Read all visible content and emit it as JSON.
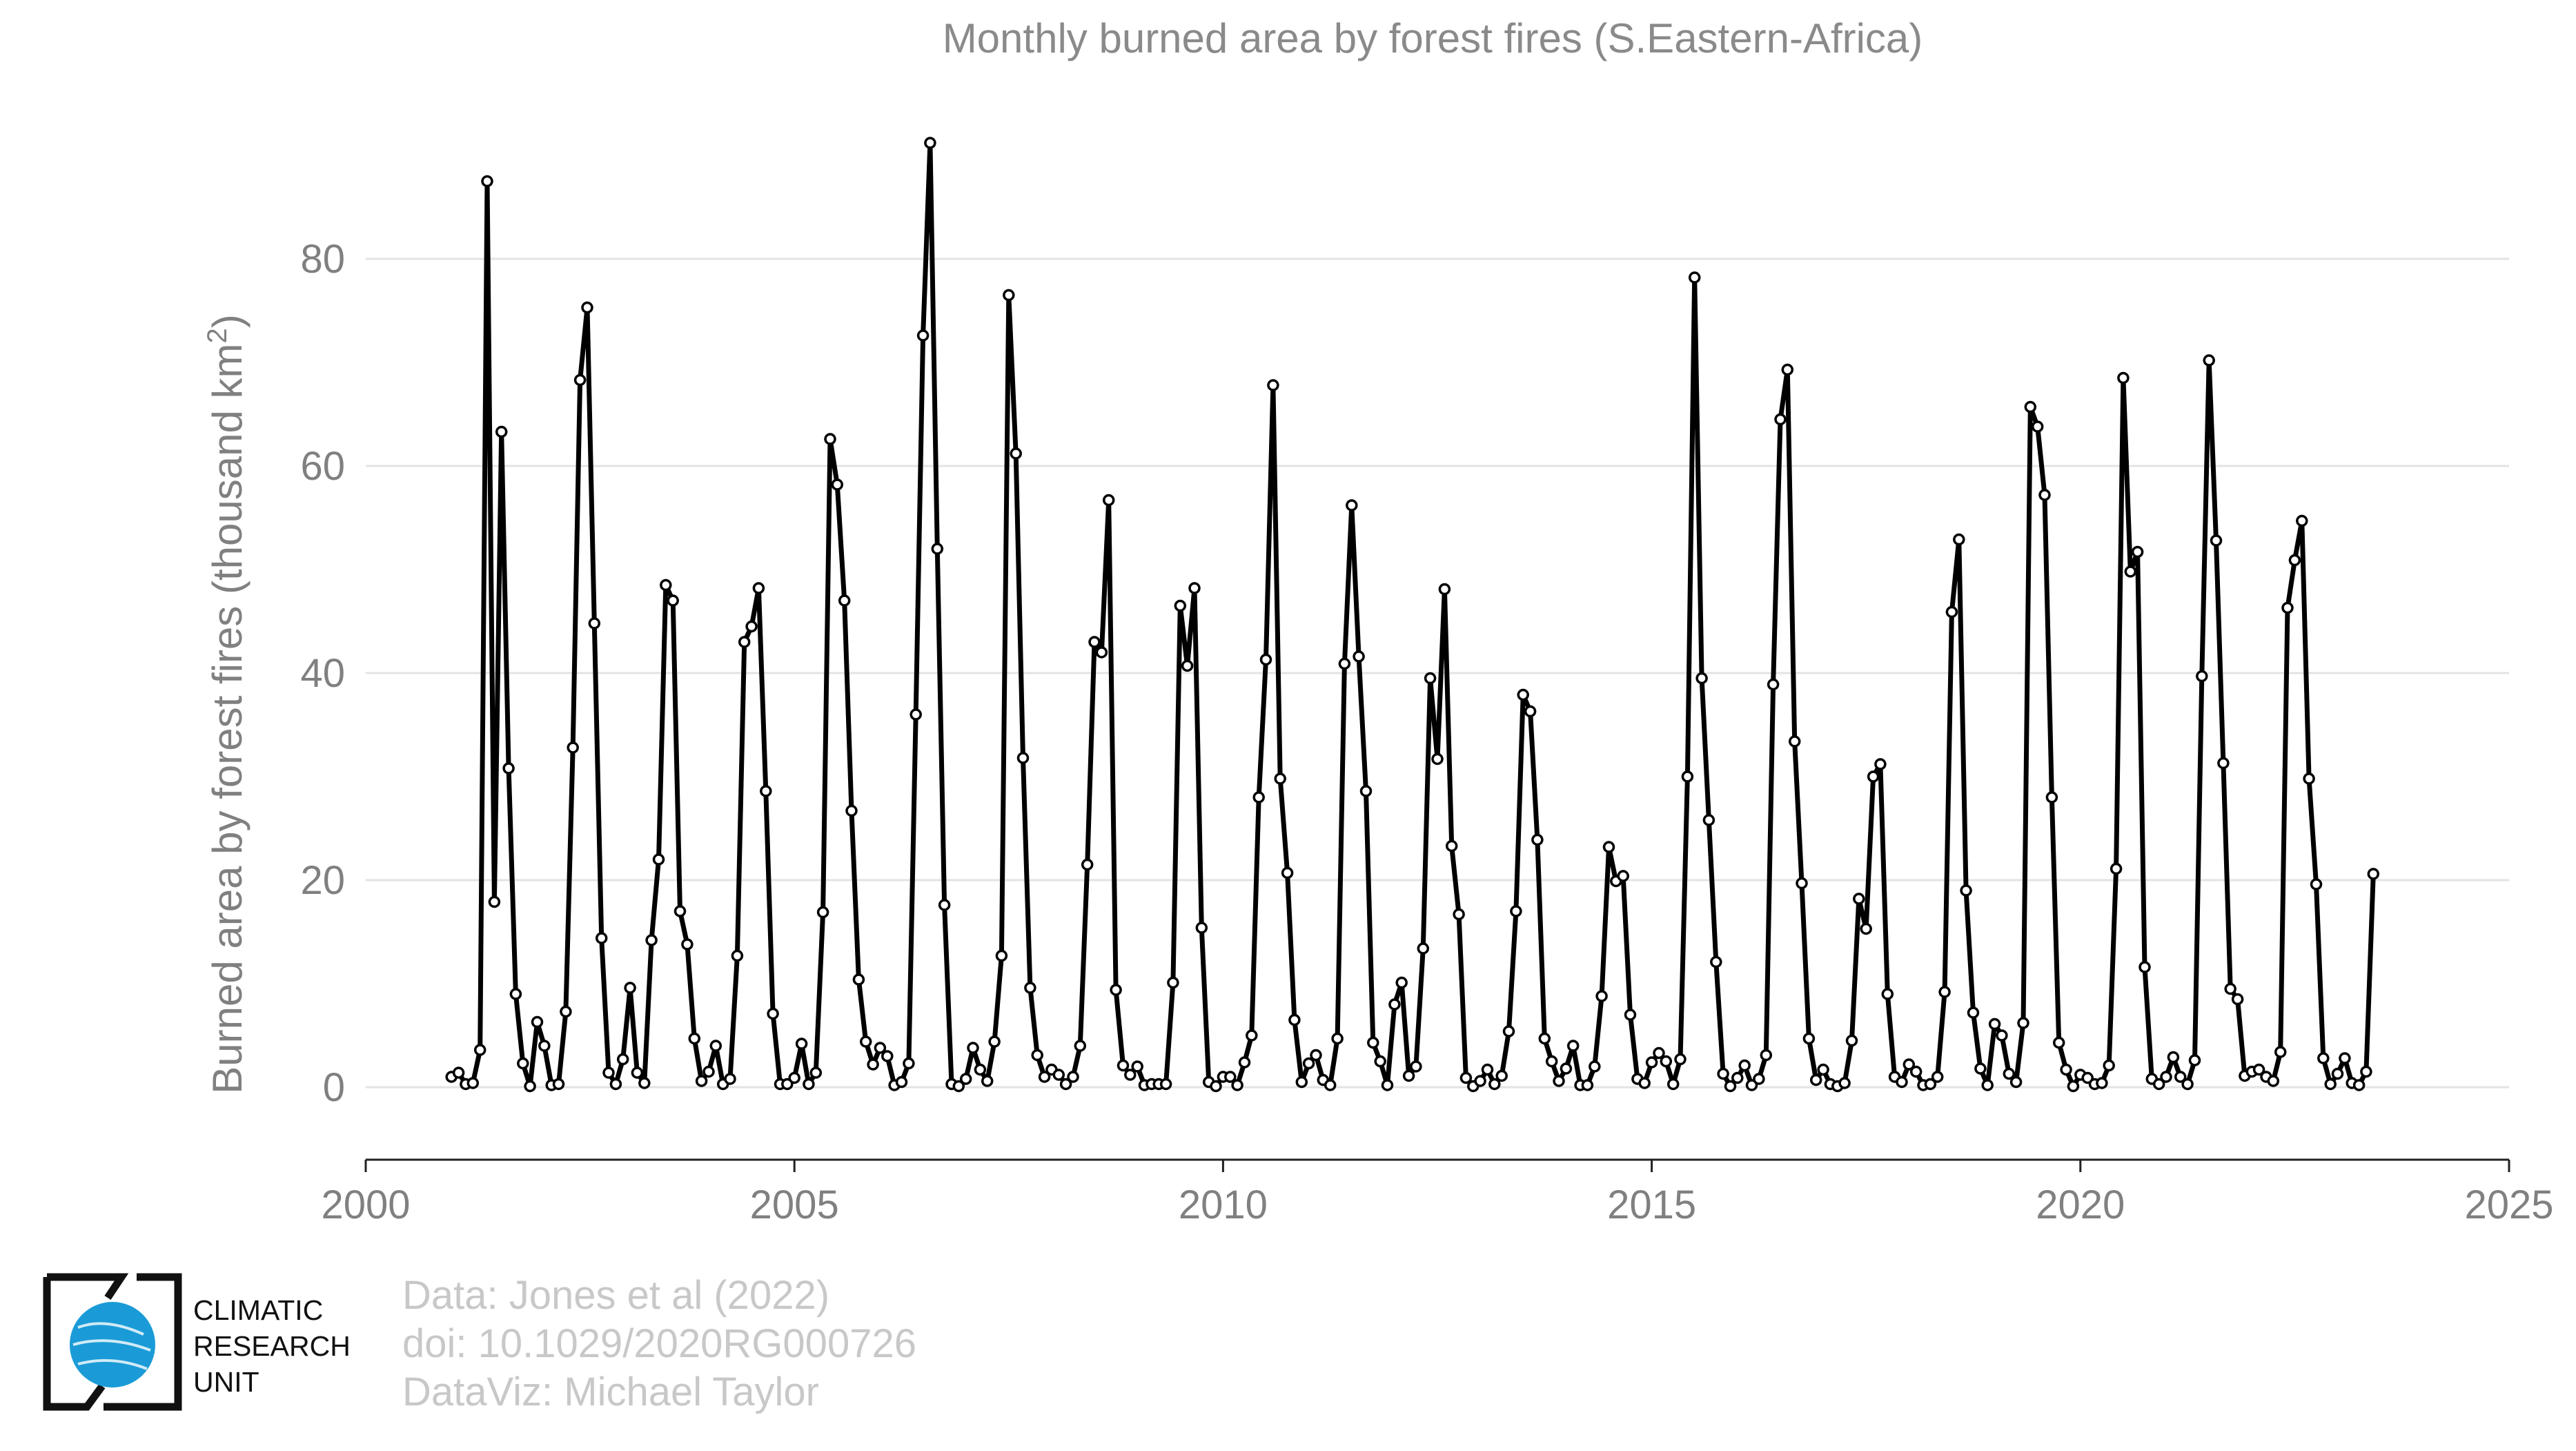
{
  "chart_data": {
    "type": "line",
    "title": "Monthly burned area by forest fires (S.Eastern-Africa)",
    "ylabel_main": "Burned area by forest fires (thousand km",
    "ylabel_sup": "2",
    "ylabel_close": ")",
    "xlim": [
      2000,
      2025
    ],
    "ylim": [
      -7,
      95
    ],
    "xticks": [
      2000,
      2005,
      2010,
      2015,
      2020,
      2025
    ],
    "yticks": [
      0,
      20,
      40,
      60,
      80
    ],
    "grid": "horizontal",
    "line_color": "#000000",
    "marker_fill": "#ffffff",
    "start_year": 2001,
    "start_month": 1,
    "series": [
      {
        "values": [
          1.0,
          1.4,
          0.3,
          0.4,
          3.6,
          87.5,
          17.9,
          63.3,
          30.8,
          9.0,
          2.3,
          0.1,
          6.3,
          4.0,
          0.2,
          0.3,
          7.3,
          32.8,
          68.3,
          75.3,
          44.8,
          14.4,
          1.4,
          0.3,
          2.7,
          9.6,
          1.4,
          0.4,
          14.2,
          22.0,
          48.5,
          47.0,
          17.0,
          13.8,
          4.7,
          0.6,
          1.5,
          4.0,
          0.3,
          0.8,
          12.7,
          43.0,
          44.5,
          48.2,
          28.6,
          7.1,
          0.3,
          0.3,
          0.9,
          4.2,
          0.3,
          1.4,
          16.9,
          62.6,
          58.2,
          47.0,
          26.7,
          10.4,
          4.4,
          2.2,
          3.8,
          3.0,
          0.2,
          0.5,
          2.3,
          36.0,
          72.6,
          91.2,
          52.0,
          17.6,
          0.3,
          0.1,
          0.8,
          3.8,
          1.7,
          0.6,
          4.4,
          12.7,
          76.5,
          61.2,
          31.8,
          9.6,
          3.1,
          1.0,
          1.7,
          1.2,
          0.3,
          1.0,
          4.0,
          21.5,
          43.0,
          42.0,
          56.7,
          9.4,
          2.1,
          1.2,
          2.0,
          0.2,
          0.3,
          0.3,
          0.3,
          10.1,
          46.5,
          40.7,
          48.2,
          15.4,
          0.5,
          0.1,
          1.0,
          1.0,
          0.2,
          2.4,
          5.0,
          28.0,
          41.3,
          67.8,
          29.8,
          20.7,
          6.5,
          0.5,
          2.3,
          3.1,
          0.7,
          0.2,
          4.7,
          40.9,
          56.2,
          41.6,
          28.6,
          4.3,
          2.5,
          0.2,
          8.0,
          10.1,
          1.1,
          2.0,
          13.4,
          39.5,
          31.7,
          48.1,
          23.3,
          16.7,
          0.9,
          0.1,
          0.6,
          1.7,
          0.3,
          1.1,
          5.4,
          17.0,
          37.9,
          36.3,
          23.9,
          4.7,
          2.5,
          0.6,
          1.8,
          4.0,
          0.2,
          0.2,
          2.0,
          8.8,
          23.2,
          19.9,
          20.4,
          7.0,
          0.8,
          0.4,
          2.4,
          3.3,
          2.5,
          0.3,
          2.7,
          30.0,
          78.2,
          39.5,
          25.8,
          12.1,
          1.3,
          0.1,
          0.9,
          2.1,
          0.2,
          0.8,
          3.1,
          38.9,
          64.5,
          69.3,
          33.4,
          19.7,
          4.7,
          0.7,
          1.7,
          0.3,
          0.1,
          0.4,
          4.5,
          18.2,
          15.3,
          30.0,
          31.2,
          9.0,
          1.0,
          0.5,
          2.2,
          1.5,
          0.2,
          0.3,
          1.0,
          9.2,
          45.9,
          52.9,
          19.0,
          7.2,
          1.8,
          0.2,
          6.1,
          5.0,
          1.3,
          0.5,
          6.2,
          65.7,
          63.8,
          57.2,
          28.0,
          4.3,
          1.7,
          0.1,
          1.2,
          0.9,
          0.3,
          0.4,
          2.1,
          21.1,
          68.5,
          49.8,
          51.7,
          11.6,
          0.8,
          0.3,
          1.0,
          2.9,
          1.0,
          0.3,
          2.6,
          39.7,
          70.2,
          52.8,
          31.3,
          9.5,
          8.5,
          1.1,
          1.5,
          1.7,
          1.0,
          0.6,
          3.4,
          46.3,
          50.9,
          54.7,
          29.8,
          19.6,
          2.8,
          0.3,
          1.3,
          2.8,
          0.4,
          0.2,
          1.5,
          20.6
        ]
      }
    ]
  },
  "credits": {
    "line1": "Data: Jones et al (2022)",
    "line2": "doi: 10.1029/2020RG000726",
    "line3": "DataViz: Michael Taylor"
  },
  "logo": {
    "line1": "CLIMATIC",
    "line2": "RESEARCH",
    "line3": "UNIT",
    "globe_color": "#1a9bd7"
  }
}
